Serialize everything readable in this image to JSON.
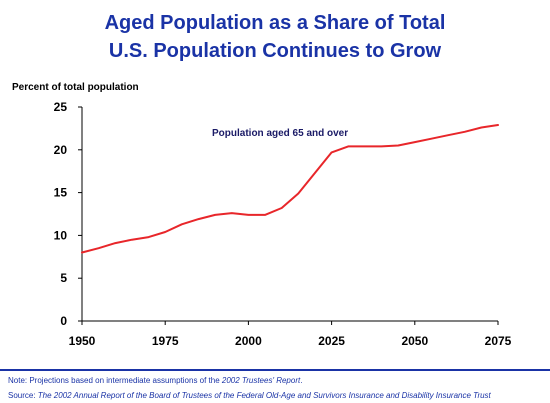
{
  "title": {
    "line1": "Aged Population as a Share of Total",
    "line2": "U.S. Population Continues to Grow"
  },
  "colors": {
    "title": "#1a33a6",
    "series": "#e8262a",
    "axis": "#000000"
  },
  "chart_data": {
    "type": "line",
    "ylabel": "Percent of total population",
    "xlabel": "",
    "xlim": [
      1950,
      2075
    ],
    "ylim": [
      0,
      25
    ],
    "xticks": [
      1950,
      1975,
      2000,
      2025,
      2050,
      2075
    ],
    "yticks": [
      0,
      5,
      10,
      15,
      20,
      25
    ],
    "grid": false,
    "series": [
      {
        "name": "Population aged 65 and over",
        "x": [
          1950,
          1955,
          1960,
          1965,
          1970,
          1975,
          1980,
          1985,
          1990,
          1995,
          2000,
          2005,
          2010,
          2015,
          2020,
          2025,
          2030,
          2035,
          2040,
          2045,
          2050,
          2055,
          2060,
          2065,
          2070,
          2075
        ],
        "y": [
          8.0,
          8.5,
          9.1,
          9.5,
          9.8,
          10.4,
          11.3,
          11.9,
          12.4,
          12.6,
          12.4,
          12.4,
          13.2,
          14.9,
          17.3,
          19.7,
          20.4,
          20.4,
          20.4,
          20.5,
          20.9,
          21.3,
          21.7,
          22.1,
          22.6,
          22.9
        ]
      }
    ]
  },
  "notes": {
    "note_prefix": "Note:  Projections based on intermediate assumptions of the ",
    "note_italic": "2002 Trustees' Report",
    "note_suffix": ".",
    "source_prefix": "Source:  ",
    "source_italic": "The 2002 Annual Report of the Board of Trustees of the Federal Old-Age and Survivors Insurance and Disability Insurance Trust"
  }
}
